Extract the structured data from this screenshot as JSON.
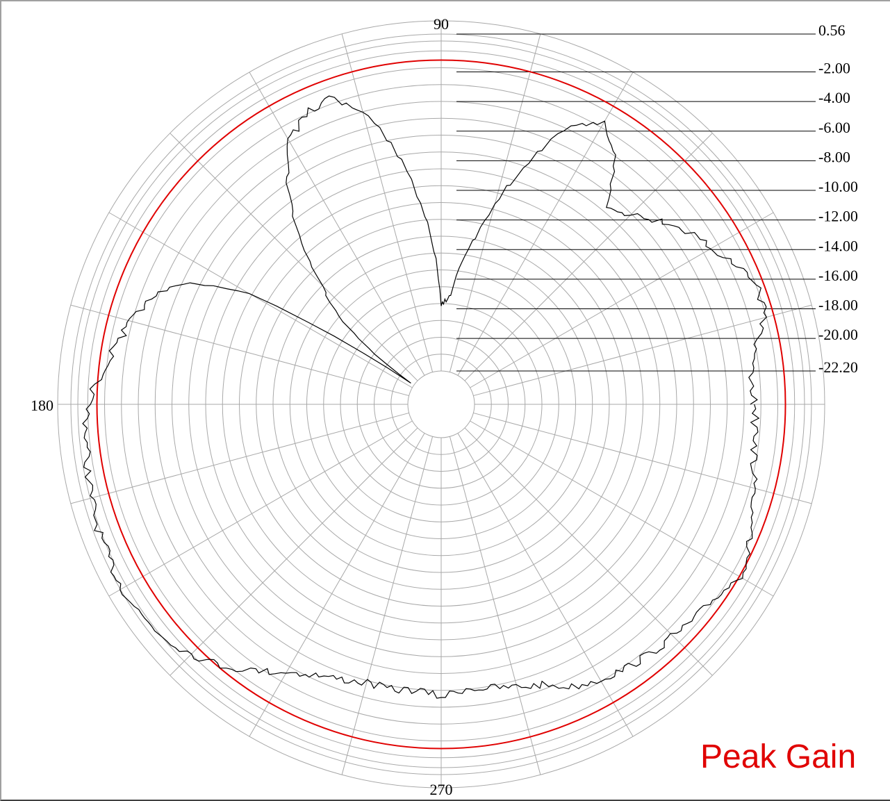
{
  "chart_data": {
    "type": "polar-line",
    "angle_labels": [
      "90",
      "180",
      "270"
    ],
    "angle_tick_step_deg": 15,
    "radial_unit": "dB",
    "radial_labels": [
      "0.56",
      "-2.00",
      "-4.00",
      "-6.00",
      "-8.00",
      "-10.00",
      "-12.00",
      "-14.00",
      "-16.00",
      "-18.00",
      "-20.00",
      "-22.20"
    ],
    "rlim": [
      -22.2,
      0.56
    ],
    "grid": true,
    "reference_circle": {
      "value": -1.2,
      "color": "#e00000"
    },
    "series": [
      {
        "color": "#000000",
        "points": [
          [
            0,
            -3.3
          ],
          [
            5,
            -3.5
          ],
          [
            10,
            -3.0
          ],
          [
            15,
            -1.8
          ],
          [
            20,
            -1.7
          ],
          [
            25,
            -2.4
          ],
          [
            30,
            -3.4
          ],
          [
            35,
            -4.1
          ],
          [
            40,
            -5.2
          ],
          [
            45,
            -6.4
          ],
          [
            50,
            -7.0
          ],
          [
            55,
            -4.1
          ],
          [
            60,
            -2.6
          ],
          [
            65,
            -3.6
          ],
          [
            70,
            -6.9
          ],
          [
            75,
            -10.5
          ],
          [
            80,
            -14.0
          ],
          [
            85,
            -16.8
          ],
          [
            88,
            -17.4
          ],
          [
            90,
            -17.8
          ],
          [
            92,
            -14.8
          ],
          [
            95,
            -11.5
          ],
          [
            100,
            -7.2
          ],
          [
            105,
            -3.9
          ],
          [
            110,
            -2.4
          ],
          [
            115,
            -2.8
          ],
          [
            120,
            -4.0
          ],
          [
            125,
            -6.4
          ],
          [
            130,
            -9.5
          ],
          [
            135,
            -13.0
          ],
          [
            140,
            -16.0
          ],
          [
            143,
            -18.8
          ],
          [
            145,
            -22.2
          ],
          [
            150,
            -9.5
          ],
          [
            155,
            -5.0
          ],
          [
            160,
            -3.5
          ],
          [
            170,
            -2.1
          ],
          [
            175,
            -1.3
          ],
          [
            180,
            -0.6
          ],
          [
            190,
            -0.2
          ],
          [
            200,
            0.2
          ],
          [
            210,
            0.4
          ],
          [
            215,
            0.3
          ],
          [
            220,
            0.0
          ],
          [
            225,
            -0.6
          ],
          [
            230,
            -1.4
          ],
          [
            235,
            -2.5
          ],
          [
            240,
            -3.6
          ],
          [
            245,
            -4.3
          ],
          [
            250,
            -4.7
          ],
          [
            255,
            -5.0
          ],
          [
            260,
            -4.9
          ],
          [
            265,
            -5.1
          ],
          [
            270,
            -4.7
          ],
          [
            275,
            -5.2
          ],
          [
            280,
            -5.0
          ],
          [
            285,
            -4.7
          ],
          [
            290,
            -4.3
          ],
          [
            295,
            -3.4
          ],
          [
            300,
            -3.0
          ],
          [
            305,
            -2.7
          ],
          [
            310,
            -2.5
          ],
          [
            315,
            -2.3
          ],
          [
            320,
            -2.0
          ],
          [
            325,
            -1.8
          ],
          [
            330,
            -1.2
          ],
          [
            335,
            -1.5
          ],
          [
            340,
            -2.1
          ],
          [
            345,
            -2.4
          ],
          [
            350,
            -3.0
          ],
          [
            355,
            -3.2
          ],
          [
            360,
            -3.3
          ]
        ]
      }
    ],
    "annotation": "Peak Gain"
  }
}
